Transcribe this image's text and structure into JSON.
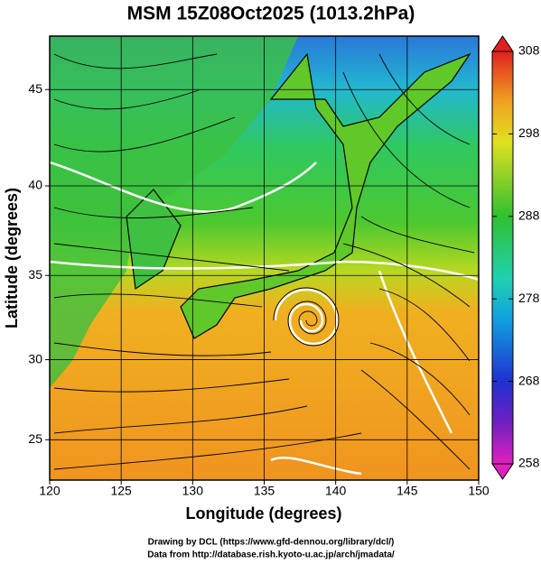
{
  "map": {
    "title": "MSM 15Z08Oct2025 (1013.2hPa)",
    "x_label": "Longitude (degrees)",
    "y_label": "Latitude  (degrees)",
    "xlim": [
      120,
      150
    ],
    "xticks": [
      120,
      125,
      130,
      135,
      140,
      145,
      150
    ],
    "ylim": [
      22.4,
      47.6
    ],
    "yticks": [
      25,
      30,
      35,
      40,
      45
    ],
    "colorbar": {
      "lim": [
        258,
        308
      ],
      "ticks": [
        258,
        268,
        278,
        288,
        298,
        308
      ]
    }
  },
  "credits": [
    "Drawing by DCL (https://www.gfd-dennou.org/library/dcl/)",
    "Data from http://database.rish.kyoto-u.ac.jp/arch/jmadata/"
  ]
}
